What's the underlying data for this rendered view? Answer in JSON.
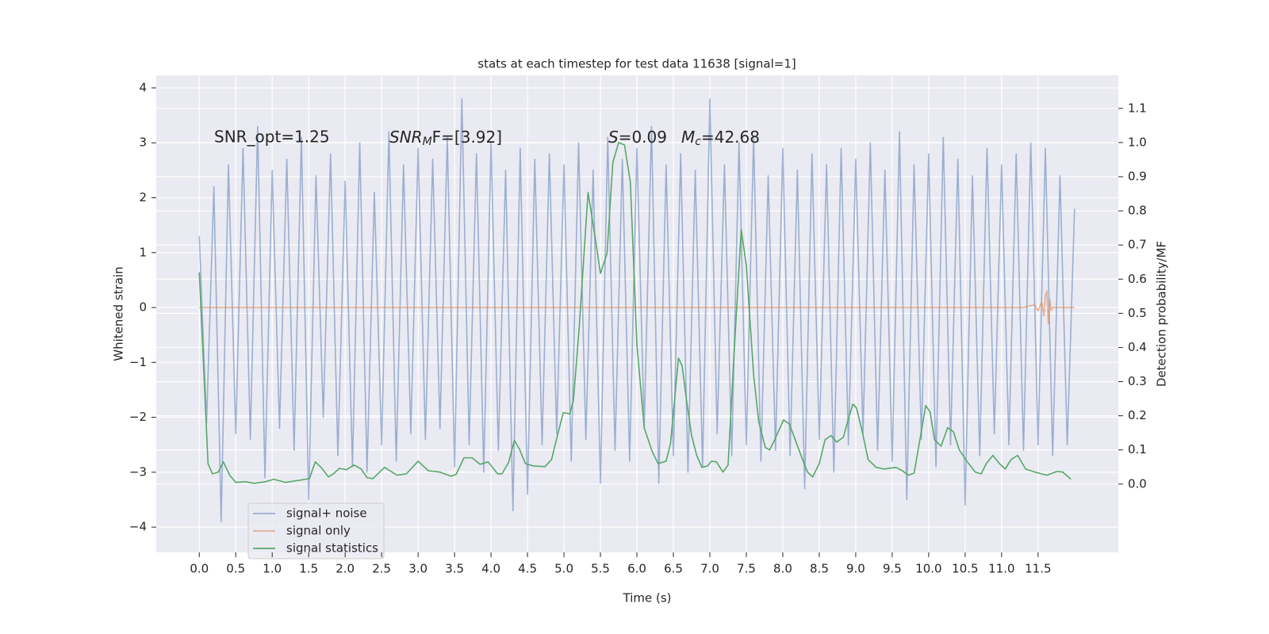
{
  "chart_data": {
    "type": "line",
    "title": "stats at each timestep for test data 11638 [signal=1]",
    "xlabel": "Time (s)",
    "ylabel": "Whitened strain",
    "y2label": "Detection probability/MF",
    "annotations": [
      {
        "text": "SNR_opt=1.25"
      },
      {
        "text": "SNR",
        "sub": "M",
        "rest": "F=[3.92]"
      },
      {
        "text": "S",
        "rest": "=0.09"
      },
      {
        "text": "M",
        "sub": "c",
        "rest": "=42.68"
      }
    ],
    "grid": true,
    "legend": "lower left",
    "xlim": [
      -0.59,
      12.6
    ],
    "ylim": [
      -4.46,
      4.23
    ],
    "y2lim": [
      -0.2,
      1.197
    ],
    "xticks": [
      {
        "value": 0,
        "label": "0.0"
      },
      0.5,
      {
        "value": 1,
        "label": "1.0"
      },
      1.5,
      {
        "value": 2,
        "label": "2.0"
      },
      2.5,
      {
        "value": 3,
        "label": "3.0"
      },
      3.5,
      {
        "value": 4,
        "label": "4.0"
      },
      4.5,
      {
        "value": 5,
        "label": "5.0"
      },
      5.5,
      {
        "value": 6,
        "label": "6.0"
      },
      6.5,
      {
        "value": 7,
        "label": "7.0"
      },
      7.5,
      {
        "value": 8,
        "label": "8.0"
      },
      8.5,
      {
        "value": 9,
        "label": "9.0"
      },
      9.5,
      {
        "value": 10,
        "label": "10.0"
      },
      10.5,
      {
        "value": 11,
        "label": "11.0"
      },
      11.5
    ],
    "yticks": [
      {
        "value": -4,
        "label": "−4"
      },
      {
        "value": -3,
        "label": "−3"
      },
      {
        "value": -2,
        "label": "−2"
      },
      {
        "value": -1,
        "label": "−1"
      },
      0,
      1,
      2,
      3,
      4
    ],
    "y2ticks": [
      {
        "value": 0,
        "label": "0.0"
      },
      0.1,
      0.2,
      0.3,
      0.4,
      0.5,
      0.6,
      0.7,
      0.8,
      0.9,
      {
        "value": 1,
        "label": "1.0"
      },
      1.1
    ],
    "series": [
      {
        "name": "signal+ noise",
        "color": "#4c72b0",
        "opacity": 0.5,
        "x": [
          0,
          0.1,
          0.2,
          0.3,
          0.4,
          0.5,
          0.6,
          0.7,
          0.8,
          0.9,
          1,
          1.1,
          1.2,
          1.3,
          1.4,
          1.5,
          1.6,
          1.7,
          1.8,
          1.9,
          2,
          2.1,
          2.2,
          2.3,
          2.4,
          2.5,
          2.6,
          2.7,
          2.8,
          2.9,
          3,
          3.1,
          3.2,
          3.3,
          3.4,
          3.5,
          3.6,
          3.7,
          3.8,
          3.9,
          4,
          4.1,
          4.2,
          4.3,
          4.4,
          4.5,
          4.6,
          4.7,
          4.8,
          4.9,
          5,
          5.1,
          5.2,
          5.3,
          5.4,
          5.5,
          5.6,
          5.7,
          5.8,
          5.9,
          6,
          6.1,
          6.2,
          6.3,
          6.4,
          6.5,
          6.6,
          6.7,
          6.8,
          6.9,
          7,
          7.1,
          7.2,
          7.3,
          7.4,
          7.5,
          7.6,
          7.7,
          7.8,
          7.9,
          8,
          8.1,
          8.2,
          8.3,
          8.4,
          8.5,
          8.6,
          8.7,
          8.8,
          8.9,
          9,
          9.1,
          9.2,
          9.3,
          9.4,
          9.5,
          9.6,
          9.7,
          9.8,
          9.9,
          10,
          10.1,
          10.2,
          10.3,
          10.4,
          10.5,
          10.6,
          10.7,
          10.8,
          10.9,
          11,
          11.1,
          11.2,
          11.3,
          11.4,
          11.5,
          11.6,
          11.7,
          11.8,
          11.9,
          12
        ],
        "values": [
          1.3,
          -2.1,
          2.2,
          -3.9,
          2.6,
          -2.3,
          2.9,
          -2.4,
          3.3,
          -3.1,
          2.5,
          -2.2,
          2.7,
          -2.6,
          3.1,
          -3.5,
          2.4,
          -2.0,
          2.8,
          -2.7,
          2.3,
          -2.9,
          3.0,
          -3.0,
          2.1,
          -2.5,
          3.2,
          -2.8,
          2.6,
          -2.3,
          2.9,
          -2.4,
          2.7,
          -2.2,
          3.1,
          -2.9,
          3.8,
          -2.5,
          2.8,
          -3.0,
          3.0,
          -2.6,
          2.5,
          -3.7,
          2.9,
          -3.4,
          2.7,
          -2.5,
          2.8,
          -2.3,
          2.6,
          -2.8,
          3.0,
          -2.4,
          2.5,
          -3.2,
          3.1,
          -2.6,
          2.7,
          -2.8,
          2.9,
          -2.2,
          3.3,
          -3.2,
          2.6,
          -2.7,
          2.8,
          -3.0,
          2.5,
          -2.9,
          3.8,
          -2.3,
          2.6,
          -2.7,
          3.0,
          -2.5,
          3.1,
          -2.8,
          2.4,
          -2.6,
          2.9,
          -2.7,
          2.5,
          -3.3,
          2.8,
          -2.4,
          2.6,
          -3.0,
          2.9,
          -2.5,
          2.7,
          -2.3,
          3.0,
          -2.6,
          2.5,
          -2.8,
          3.2,
          -3.5,
          2.6,
          -2.4,
          2.8,
          -2.9,
          3.1,
          -2.5,
          2.7,
          -3.6,
          2.4,
          -2.7,
          2.9,
          -2.3,
          2.6,
          -2.5,
          2.8,
          -2.6,
          3.0,
          -2.5,
          2.9,
          -2.7,
          2.4,
          -2.5,
          1.8
        ]
      },
      {
        "name": "signal only",
        "color": "#dd8452",
        "opacity": 0.6,
        "x": [
          0,
          11.3,
          11.45,
          11.5,
          11.55,
          11.58,
          11.6,
          11.62,
          11.64,
          11.66,
          11.68,
          11.7,
          12
        ],
        "values": [
          0,
          0,
          0.05,
          -0.06,
          0.1,
          -0.15,
          0.22,
          0.3,
          -0.3,
          0.15,
          -0.05,
          0,
          0
        ]
      },
      {
        "name": "signal statistics",
        "color": "#55a868",
        "opacity": 1,
        "axis": "y2",
        "x": [
          0,
          0.12,
          0.18,
          0.26,
          0.33,
          0.42,
          0.5,
          0.64,
          0.75,
          0.91,
          1.02,
          1.18,
          1.4,
          1.51,
          1.59,
          1.67,
          1.77,
          1.84,
          1.92,
          2.02,
          2.12,
          2.22,
          2.3,
          2.38,
          2.54,
          2.71,
          2.84,
          3.0,
          3.14,
          3.3,
          3.45,
          3.52,
          3.63,
          3.74,
          3.85,
          3.96,
          4.09,
          4.15,
          4.24,
          4.32,
          4.39,
          4.47,
          4.58,
          4.74,
          4.83,
          4.91,
          4.99,
          5.08,
          5.13,
          5.21,
          5.33,
          5.42,
          5.5,
          5.59,
          5.67,
          5.75,
          5.83,
          5.91,
          6.0,
          6.1,
          6.21,
          6.29,
          6.4,
          6.46,
          6.57,
          6.62,
          6.68,
          6.75,
          6.82,
          6.89,
          6.97,
          7.02,
          7.09,
          7.18,
          7.25,
          7.33,
          7.43,
          7.5,
          7.6,
          7.67,
          7.76,
          7.82,
          7.9,
          8.01,
          8.09,
          8.17,
          8.27,
          8.34,
          8.41,
          8.5,
          8.58,
          8.66,
          8.74,
          8.83,
          8.88,
          8.96,
          9.01,
          9.09,
          9.17,
          9.28,
          9.39,
          9.55,
          9.64,
          9.72,
          9.8,
          9.88,
          9.96,
          10.02,
          10.08,
          10.17,
          10.26,
          10.34,
          10.42,
          10.53,
          10.64,
          10.72,
          10.79,
          10.88,
          10.97,
          11.05,
          11.13,
          11.22,
          11.33,
          11.46,
          11.62,
          11.76,
          11.84,
          11.95
        ],
        "values": [
          0.62,
          0.06,
          0.03,
          0.035,
          0.065,
          0.025,
          0.005,
          0.007,
          0.002,
          0.007,
          0.014,
          0.005,
          0.012,
          0.016,
          0.065,
          0.049,
          0.021,
          0.03,
          0.046,
          0.042,
          0.056,
          0.044,
          0.019,
          0.016,
          0.049,
          0.026,
          0.03,
          0.067,
          0.039,
          0.035,
          0.023,
          0.028,
          0.077,
          0.077,
          0.058,
          0.065,
          0.03,
          0.03,
          0.063,
          0.128,
          0.102,
          0.06,
          0.053,
          0.051,
          0.072,
          0.142,
          0.209,
          0.206,
          0.246,
          0.462,
          0.854,
          0.733,
          0.617,
          0.675,
          0.942,
          1.0,
          0.993,
          0.884,
          0.408,
          0.165,
          0.095,
          0.06,
          0.067,
          0.118,
          0.369,
          0.346,
          0.246,
          0.142,
          0.084,
          0.049,
          0.053,
          0.067,
          0.065,
          0.035,
          0.056,
          0.374,
          0.745,
          0.64,
          0.32,
          0.183,
          0.107,
          0.1,
          0.135,
          0.188,
          0.176,
          0.13,
          0.072,
          0.035,
          0.021,
          0.06,
          0.13,
          0.142,
          0.123,
          0.137,
          0.176,
          0.234,
          0.223,
          0.153,
          0.072,
          0.049,
          0.044,
          0.049,
          0.039,
          0.026,
          0.032,
          0.13,
          0.23,
          0.211,
          0.13,
          0.111,
          0.165,
          0.153,
          0.1,
          0.065,
          0.035,
          0.03,
          0.06,
          0.084,
          0.06,
          0.044,
          0.072,
          0.084,
          0.044,
          0.035,
          0.026,
          0.037,
          0.035,
          0.014
        ]
      }
    ]
  }
}
